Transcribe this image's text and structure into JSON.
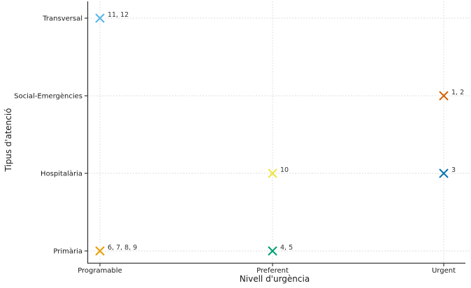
{
  "chart_data": {
    "type": "scatter",
    "title": "",
    "xlabel": "Nivell d'urgència",
    "ylabel": "Tipus d'atenció",
    "x_categories": [
      "Programable",
      "Preferent",
      "Urgent"
    ],
    "y_categories_top_to_bottom": [
      "Transversal",
      "Social-Emergències",
      "Hospitalària",
      "Primària"
    ],
    "marker": "x",
    "grid": "dotted",
    "legend": "none",
    "points": [
      {
        "x": "Programable",
        "y": "Transversal",
        "label": "11, 12",
        "color": "#56B4E9"
      },
      {
        "x": "Urgent",
        "y": "Social-Emergències",
        "label": "1, 2",
        "color": "#D55E00"
      },
      {
        "x": "Preferent",
        "y": "Hospitalària",
        "label": "10",
        "color": "#F0E442"
      },
      {
        "x": "Urgent",
        "y": "Hospitalària",
        "label": "3",
        "color": "#0072B2"
      },
      {
        "x": "Preferent",
        "y": "Primària",
        "label": "4, 5",
        "color": "#009E73"
      },
      {
        "x": "Programable",
        "y": "Primària",
        "label": "6, 7, 8, 9",
        "color": "#E69F00"
      }
    ],
    "colors": {
      "axis": "#3a3a3a",
      "grid": "#d9d9d9",
      "tick_label": "#1a1a1a",
      "annotation": "#333333"
    }
  }
}
